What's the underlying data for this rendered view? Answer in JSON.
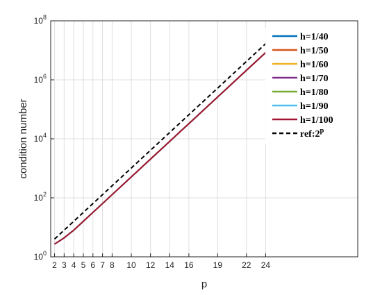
{
  "chart_data": {
    "type": "line",
    "xlabel": "p",
    "ylabel": "condition number",
    "x": [
      2,
      3,
      4,
      8,
      12,
      16,
      20,
      24
    ],
    "series": [
      {
        "name": "h=1/40",
        "color": "#0072BD",
        "values": [
          2.7,
          4.4,
          8,
          128,
          2048,
          32768,
          524288,
          8388608
        ]
      },
      {
        "name": "h=1/50",
        "color": "#D95319",
        "values": [
          2.7,
          4.4,
          8,
          128,
          2048,
          32768,
          524288,
          8388608
        ]
      },
      {
        "name": "h=1/60",
        "color": "#EDB120",
        "values": [
          2.7,
          4.4,
          8,
          128,
          2048,
          32768,
          524288,
          8388608
        ]
      },
      {
        "name": "h=1/70",
        "color": "#7E2F8E",
        "values": [
          2.7,
          4.4,
          8,
          128,
          2048,
          32768,
          524288,
          8388608
        ]
      },
      {
        "name": "h=1/80",
        "color": "#77AC30",
        "values": [
          2.7,
          4.4,
          8,
          128,
          2048,
          32768,
          524288,
          8388608
        ]
      },
      {
        "name": "h=1/90",
        "color": "#4DBEEE",
        "values": [
          2.7,
          4.4,
          8,
          128,
          2048,
          32768,
          524288,
          8388608
        ]
      },
      {
        "name": "h=1/100",
        "color": "#A2142F",
        "values": [
          2.7,
          4.4,
          8,
          128,
          2048,
          32768,
          524288,
          8388608
        ]
      },
      {
        "name": "ref:2^p",
        "color": "#000000",
        "dashed": true,
        "values": [
          4,
          8,
          16,
          256,
          4096,
          65536,
          1048576,
          16777216
        ]
      }
    ],
    "xlim": [
      1.6,
      33.6
    ],
    "xticks": [
      2,
      3,
      4,
      5,
      6,
      7,
      8,
      10,
      12,
      14,
      16,
      19,
      22,
      24
    ],
    "ylim": [
      1,
      100000000
    ],
    "ylog": true,
    "yticks": [
      {
        "value": 1,
        "label": "10^0"
      },
      {
        "value": 100,
        "label": "10^2"
      },
      {
        "value": 10000,
        "label": "10^4"
      },
      {
        "value": 1000000,
        "label": "10^6"
      },
      {
        "value": 100000000,
        "label": "10^8"
      }
    ],
    "grid": true,
    "legend": "upper right"
  }
}
